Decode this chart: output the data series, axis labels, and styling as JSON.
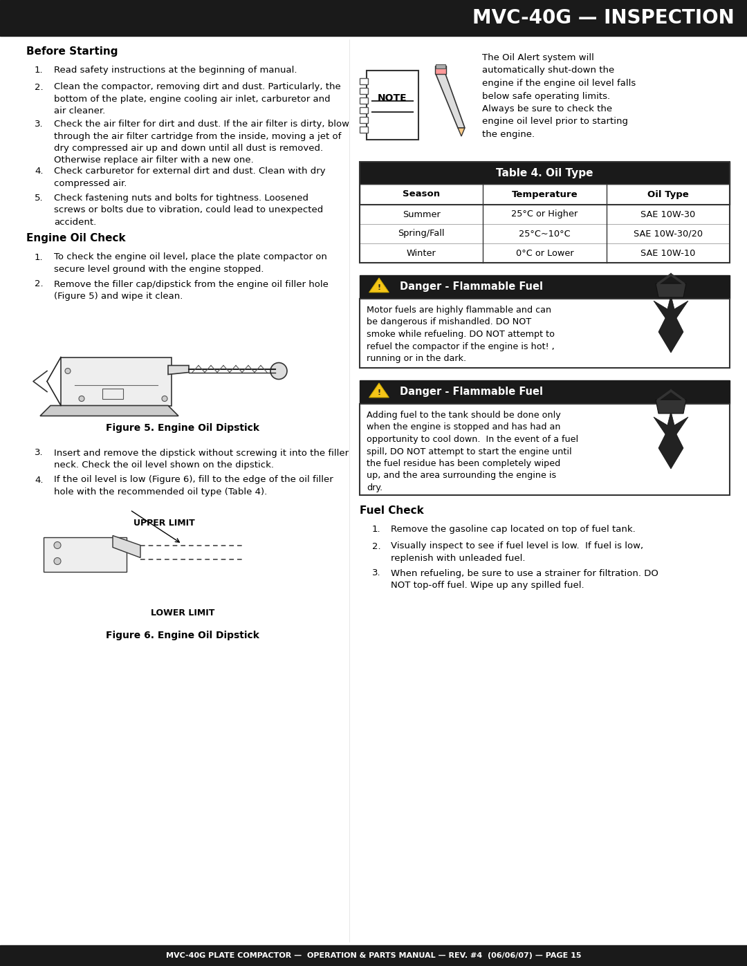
{
  "title_bar_text": "MVC-40G — INSPECTION",
  "title_bar_bg": "#1a1a1a",
  "title_bar_fg": "#ffffff",
  "footer_bar_text": "MVC-40G PLATE COMPACTOR —  OPERATION & PARTS MANUAL — REV. #4  (06/06/07) — PAGE 15",
  "footer_bar_bg": "#1a1a1a",
  "footer_bar_fg": "#ffffff",
  "page_bg": "#ffffff",
  "before_starting_title": "Before Starting",
  "before_starting_items": [
    "Read safety instructions at the beginning of manual.",
    "Clean the compactor, removing dirt and dust. Particularly, the\nbottom of the plate, engine cooling air inlet, carburetor and\nair cleaner.",
    "Check the air filter for dirt and dust. If the air filter is dirty, blow\nthrough the air filter cartridge from the inside, moving a jet of\ndry compressed air up and down until all dust is removed.\nOtherwise replace air filter with a new one.",
    "Check carburetor for external dirt and dust. Clean with dry\ncompressed air.",
    "Check fastening nuts and bolts for tightness. Loosened\nscrews or bolts due to vibration, could lead to unexpected\naccident."
  ],
  "engine_oil_title": "Engine Oil Check",
  "engine_oil_items": [
    "To check the engine oil level, place the plate compactor on\nsecure level ground with the engine stopped.",
    "Remove the filler cap/dipstick from the engine oil filler hole\n(Figure 5) and wipe it clean."
  ],
  "fig5_caption": "Figure 5. Engine Oil Dipstick",
  "engine_oil_items2": [
    "Insert and remove the dipstick without screwing it into the filler\nneck. Check the oil level shown on the dipstick.",
    "If the oil level is low (Figure 6), fill to the edge of the oil filler\nhole with the recommended oil type (Table 4)."
  ],
  "upper_limit": "UPPER LIMIT",
  "lower_limit": "LOWER LIMIT",
  "fig6_caption": "Figure 6. Engine Oil Dipstick",
  "note_text": "The Oil Alert system will\nautomatically shut-down the\nengine if the engine oil level falls\nbelow safe operating limits.\nAlways be sure to check the\nengine oil level prior to starting\nthe engine.",
  "table_title": "Table 4. Oil Type",
  "table_headers": [
    "Season",
    "Temperature",
    "Oil Type"
  ],
  "table_rows": [
    [
      "Summer",
      "25°C or Higher",
      "SAE 10W-30"
    ],
    [
      "Spring/Fall",
      "25°C~10°C",
      "SAE 10W-30/20"
    ],
    [
      "Winter",
      "0°C or Lower",
      "SAE 10W-10"
    ]
  ],
  "danger1_title": "Danger - Flammable Fuel",
  "danger1_text": "Motor fuels are highly flammable and can\nbe dangerous if mishandled. DO NOT\nsmoke while refueling. DO NOT attempt to\nrefuel the compactor if the engine is hot! ,\nrunning or in the dark.",
  "danger1_bold": [
    "DO NOT",
    "DO NOT",
    "hot!",
    "running or in the dark."
  ],
  "danger2_title": "Danger - Flammable Fuel",
  "danger2_text": "Adding fuel to the tank should be done only\nwhen the engine is stopped and has had an\nopportunity to cool down.  In the event of a fuel\nspill, DO NOT attempt to start the engine until\nthe fuel residue has been completely wiped\nup, and the area surrounding the engine is\ndry.",
  "fuel_check_title": "Fuel Check",
  "fuel_check_items": [
    "Remove the gasoline cap located on top of fuel tank.",
    "Visually inspect to see if fuel level is low.  If fuel is low,\nreplenish with unleaded fuel.",
    "When refueling, be sure to use a strainer for filtration. DO\nNOT top-off fuel. Wipe up any spilled fuel."
  ]
}
